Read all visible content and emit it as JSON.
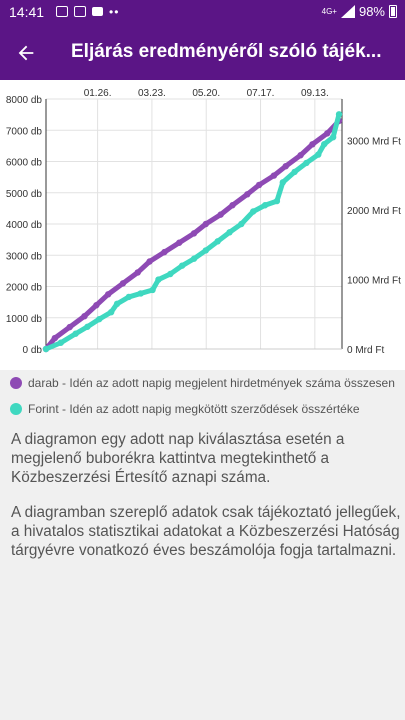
{
  "status_bar": {
    "time": "14:41",
    "network": "4G+",
    "battery": "98%",
    "icons": [
      "image-icon",
      "message-icon",
      "video-icon",
      "more-icon",
      "signal-icon",
      "battery-icon"
    ]
  },
  "app_bar": {
    "title": "Eljárás eredményéről szóló tájék...",
    "back_icon": "arrow-left-icon"
  },
  "colors": {
    "brand": "#5b1586",
    "purple_series": "#8e4ab4",
    "teal_series": "#3fd8c0"
  },
  "chart_data": {
    "type": "line",
    "x_tick_labels": [
      "01.26.",
      "03.23.",
      "05.20.",
      "07.17.",
      "09.13."
    ],
    "left_axis": {
      "ticks": [
        0,
        1000,
        2000,
        3000,
        4000,
        5000,
        6000,
        7000,
        8000
      ],
      "labels": [
        "0 db",
        "1000 db",
        "2000 db",
        "3000 db",
        "4000 db",
        "5000 db",
        "6000 db",
        "7000 db",
        "8000 db"
      ],
      "ylim": [
        0,
        8000
      ]
    },
    "right_axis": {
      "ticks": [
        0,
        1000,
        2000,
        3000
      ],
      "labels": [
        "0 Mrd Ft",
        "1000 Mrd Ft",
        "2000 Mrd Ft",
        "3000 Mrd Ft"
      ],
      "ylim": [
        0,
        3600
      ]
    },
    "grid": true,
    "x_range": [
      0,
      100
    ],
    "series": [
      {
        "name": "darab - Idén az adott napig megjelent hirdetmények száma összesen",
        "axis": "left",
        "color": "#8e4ab4",
        "points": [
          [
            0,
            0
          ],
          [
            3,
            350
          ],
          [
            8,
            700
          ],
          [
            13,
            1050
          ],
          [
            17,
            1400
          ],
          [
            21,
            1750
          ],
          [
            26,
            2100
          ],
          [
            31,
            2450
          ],
          [
            35,
            2800
          ],
          [
            40,
            3100
          ],
          [
            45,
            3400
          ],
          [
            50,
            3700
          ],
          [
            54,
            4000
          ],
          [
            59,
            4300
          ],
          [
            63,
            4600
          ],
          [
            68,
            4950
          ],
          [
            72,
            5250
          ],
          [
            77,
            5550
          ],
          [
            81,
            5850
          ],
          [
            86,
            6200
          ],
          [
            90,
            6550
          ],
          [
            95,
            6900
          ],
          [
            99,
            7300
          ]
        ]
      },
      {
        "name": "Forint - Idén az adott napig megkötött szerződések összértéke",
        "axis": "right",
        "color": "#3fd8c0",
        "points": [
          [
            0,
            0
          ],
          [
            5,
            90
          ],
          [
            10,
            220
          ],
          [
            14,
            320
          ],
          [
            18,
            430
          ],
          [
            22,
            530
          ],
          [
            24,
            650
          ],
          [
            28,
            750
          ],
          [
            32,
            800
          ],
          [
            36,
            850
          ],
          [
            38,
            1000
          ],
          [
            42,
            1080
          ],
          [
            46,
            1200
          ],
          [
            50,
            1300
          ],
          [
            54,
            1420
          ],
          [
            58,
            1550
          ],
          [
            62,
            1680
          ],
          [
            66,
            1800
          ],
          [
            70,
            1980
          ],
          [
            74,
            2070
          ],
          [
            78,
            2130
          ],
          [
            80,
            2400
          ],
          [
            84,
            2550
          ],
          [
            88,
            2680
          ],
          [
            92,
            2800
          ],
          [
            94,
            2950
          ],
          [
            97,
            3050
          ],
          [
            99,
            3380
          ]
        ]
      }
    ]
  },
  "legend": {
    "purple": "darab - Idén az adott napig megjelent hirdetmények száma összesen",
    "teal": "Forint - Idén az adott napig megkötött szerződések összértéke"
  },
  "info": {
    "p1": "A diagramon egy adott nap kiválasztása esetén a megjelenő buborékra kattintva megtekinthető a Közbeszerzési Értesítő aznapi száma.",
    "p2": "A diagramban szereplő adatok csak tájékoztató jellegűek, a hivatalos statisztikai adatokat a Közbeszerzési Hatóság tárgyévre vonatkozó éves beszámolója fogja tartalmazni."
  }
}
